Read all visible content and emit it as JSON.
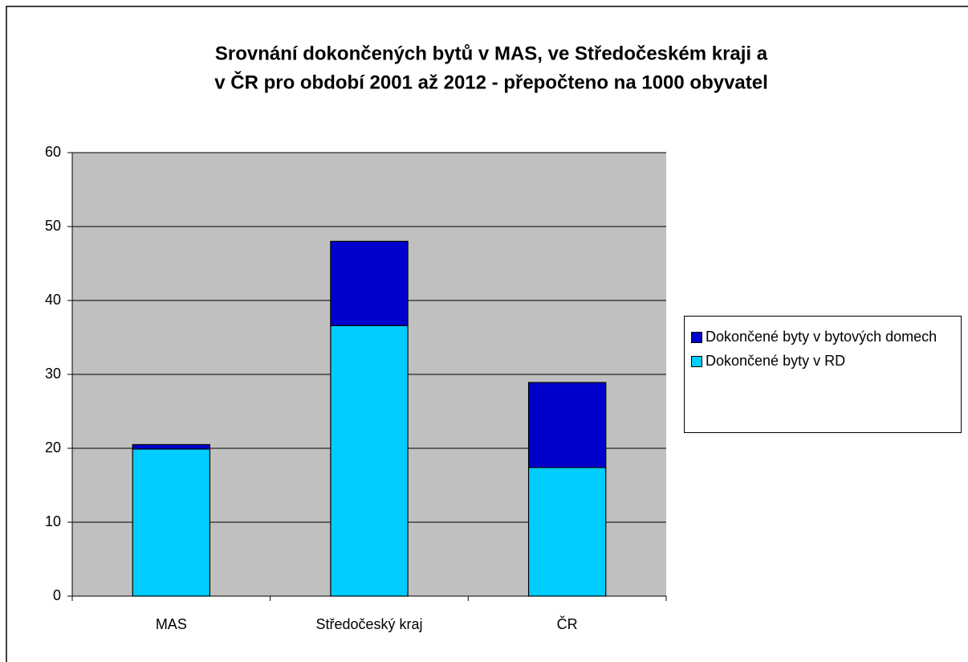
{
  "chart_data": {
    "type": "stacked_bar",
    "title": [
      "Srovnání dokončených bytů v MAS, ve Středočeském kraji a",
      "v ČR pro období 2001 až 2012 - přepočteno na 1000 obyvatel"
    ],
    "categories": [
      "MAS",
      "Středočeský kraj",
      "ČR"
    ],
    "series": [
      {
        "name": "Dokončené byty v RD",
        "color": "#00ccff",
        "values": [
          19.9,
          36.6,
          17.4
        ]
      },
      {
        "name": "Dokončené byty v bytových domech",
        "color": "#0000cc",
        "values": [
          0.6,
          11.4,
          11.5
        ]
      }
    ],
    "ylim": [
      0,
      60
    ],
    "yticks": [
      0,
      10,
      20,
      30,
      40,
      50,
      60
    ],
    "grid": true,
    "legend": "right"
  }
}
